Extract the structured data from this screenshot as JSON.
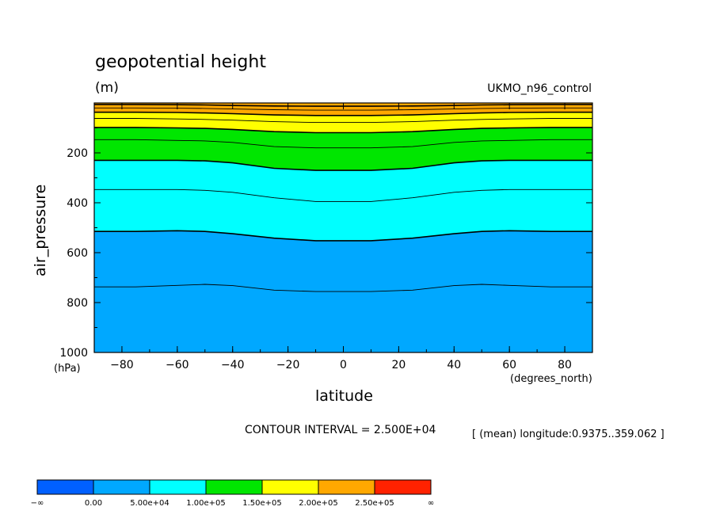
{
  "chart_data": {
    "type": "contour",
    "title": "geopotential height",
    "units": "(m)",
    "dataset": "UKMO_n96_control",
    "xlabel": "latitude",
    "x_unit": "(degrees_north)",
    "ylabel": "air_pressure",
    "y_unit": "(hPa)",
    "xlim": [
      -90,
      90
    ],
    "ylim": [
      1000,
      0
    ],
    "y_inverted": true,
    "x_ticks": [
      -80,
      -60,
      -40,
      -20,
      0,
      20,
      40,
      60,
      80
    ],
    "x_tick_labels": [
      "−80",
      "−60",
      "−40",
      "−20",
      "0",
      "20",
      "40",
      "60",
      "80"
    ],
    "y_ticks": [
      200,
      400,
      600,
      800,
      1000
    ],
    "y_tick_labels": [
      "200",
      "400",
      "600",
      "800",
      "1000"
    ],
    "contour_interval_label": "CONTOUR INTERVAL = 2.500E+04",
    "contour_interval": 25000,
    "mean_note": "[ (mean) longitude:0.9375..359.062 ]",
    "fill_bands": [
      {
        "from": 0,
        "to": 50000,
        "color": "#00a8ff"
      },
      {
        "from": 50000,
        "to": 100000,
        "color": "#00ffff"
      },
      {
        "from": 100000,
        "to": 150000,
        "color": "#00e600"
      },
      {
        "from": 150000,
        "to": 200000,
        "color": "#ffff00"
      },
      {
        "from": 200000,
        "to": 250000,
        "color": "#ffa800"
      }
    ],
    "contours": [
      {
        "level": 25000,
        "points": [
          [
            -90,
            737
          ],
          [
            -75,
            737
          ],
          [
            -60,
            731
          ],
          [
            -50,
            727
          ],
          [
            -40,
            732
          ],
          [
            -25,
            750
          ],
          [
            -10,
            756
          ],
          [
            0,
            756
          ],
          [
            10,
            756
          ],
          [
            25,
            750
          ],
          [
            40,
            732
          ],
          [
            50,
            727
          ],
          [
            60,
            731
          ],
          [
            75,
            737
          ],
          [
            90,
            737
          ]
        ]
      },
      {
        "level": 50000,
        "points": [
          [
            -90,
            515
          ],
          [
            -75,
            515
          ],
          [
            -60,
            512
          ],
          [
            -50,
            515
          ],
          [
            -40,
            524
          ],
          [
            -25,
            542
          ],
          [
            -10,
            552
          ],
          [
            0,
            552
          ],
          [
            10,
            552
          ],
          [
            25,
            542
          ],
          [
            40,
            524
          ],
          [
            50,
            515
          ],
          [
            60,
            512
          ],
          [
            75,
            515
          ],
          [
            90,
            515
          ]
        ]
      },
      {
        "level": 75000,
        "points": [
          [
            -90,
            347
          ],
          [
            -75,
            347
          ],
          [
            -60,
            347
          ],
          [
            -50,
            350
          ],
          [
            -40,
            358
          ],
          [
            -25,
            380
          ],
          [
            -10,
            395
          ],
          [
            0,
            395
          ],
          [
            10,
            395
          ],
          [
            25,
            380
          ],
          [
            40,
            358
          ],
          [
            50,
            350
          ],
          [
            60,
            347
          ],
          [
            75,
            347
          ],
          [
            90,
            347
          ]
        ]
      },
      {
        "level": 100000,
        "points": [
          [
            -90,
            230
          ],
          [
            -75,
            230
          ],
          [
            -60,
            230
          ],
          [
            -50,
            232
          ],
          [
            -40,
            240
          ],
          [
            -25,
            262
          ],
          [
            -10,
            270
          ],
          [
            0,
            270
          ],
          [
            10,
            270
          ],
          [
            25,
            262
          ],
          [
            40,
            240
          ],
          [
            50,
            232
          ],
          [
            60,
            230
          ],
          [
            75,
            230
          ],
          [
            90,
            230
          ]
        ]
      },
      {
        "level": 125000,
        "points": [
          [
            -90,
            147
          ],
          [
            -75,
            147
          ],
          [
            -60,
            150
          ],
          [
            -50,
            152
          ],
          [
            -40,
            158
          ],
          [
            -25,
            175
          ],
          [
            -10,
            180
          ],
          [
            0,
            180
          ],
          [
            10,
            180
          ],
          [
            25,
            175
          ],
          [
            40,
            158
          ],
          [
            50,
            152
          ],
          [
            60,
            150
          ],
          [
            75,
            147
          ],
          [
            90,
            147
          ]
        ]
      },
      {
        "level": 150000,
        "points": [
          [
            -90,
            98
          ],
          [
            -75,
            98
          ],
          [
            -60,
            100
          ],
          [
            -50,
            102
          ],
          [
            -40,
            106
          ],
          [
            -25,
            115
          ],
          [
            -10,
            119
          ],
          [
            0,
            119
          ],
          [
            10,
            119
          ],
          [
            25,
            115
          ],
          [
            40,
            106
          ],
          [
            50,
            102
          ],
          [
            60,
            100
          ],
          [
            75,
            98
          ],
          [
            90,
            98
          ]
        ]
      },
      {
        "level": 175000,
        "points": [
          [
            -90,
            62
          ],
          [
            -75,
            62
          ],
          [
            -60,
            64
          ],
          [
            -50,
            66
          ],
          [
            -40,
            69
          ],
          [
            -25,
            75
          ],
          [
            -10,
            78
          ],
          [
            0,
            78
          ],
          [
            10,
            78
          ],
          [
            25,
            75
          ],
          [
            40,
            69
          ],
          [
            50,
            66
          ],
          [
            60,
            64
          ],
          [
            75,
            62
          ],
          [
            90,
            62
          ]
        ]
      },
      {
        "level": 200000,
        "points": [
          [
            -90,
            37
          ],
          [
            -75,
            37
          ],
          [
            -60,
            38
          ],
          [
            -50,
            40
          ],
          [
            -40,
            43
          ],
          [
            -25,
            48
          ],
          [
            -10,
            50
          ],
          [
            0,
            50
          ],
          [
            10,
            50
          ],
          [
            25,
            48
          ],
          [
            40,
            43
          ],
          [
            50,
            40
          ],
          [
            60,
            38
          ],
          [
            75,
            37
          ],
          [
            90,
            37
          ]
        ]
      },
      {
        "level": 225000,
        "points": [
          [
            -90,
            20
          ],
          [
            -75,
            20
          ],
          [
            -60,
            21
          ],
          [
            -50,
            22
          ],
          [
            -40,
            24
          ],
          [
            -25,
            27
          ],
          [
            -10,
            29
          ],
          [
            0,
            29
          ],
          [
            10,
            29
          ],
          [
            25,
            27
          ],
          [
            40,
            24
          ],
          [
            50,
            22
          ],
          [
            60,
            21
          ],
          [
            75,
            20
          ],
          [
            90,
            20
          ]
        ]
      },
      {
        "level": 250000,
        "points": [
          [
            -90,
            6
          ],
          [
            -75,
            6
          ],
          [
            -60,
            7
          ],
          [
            -50,
            8
          ],
          [
            -40,
            10
          ],
          [
            -25,
            12
          ],
          [
            -10,
            13
          ],
          [
            0,
            13
          ],
          [
            10,
            13
          ],
          [
            25,
            12
          ],
          [
            40,
            10
          ],
          [
            50,
            8
          ],
          [
            60,
            7
          ],
          [
            75,
            6
          ],
          [
            90,
            6
          ]
        ]
      }
    ],
    "colorbar": {
      "colors": [
        "#0060ff",
        "#00a8ff",
        "#00ffff",
        "#00e600",
        "#ffff00",
        "#ffa800",
        "#ff2200"
      ],
      "labels": [
        "−∞",
        "0.00",
        "5.00e+04",
        "1.00e+05",
        "1.50e+05",
        "2.00e+05",
        "2.50e+05",
        "∞"
      ]
    }
  }
}
